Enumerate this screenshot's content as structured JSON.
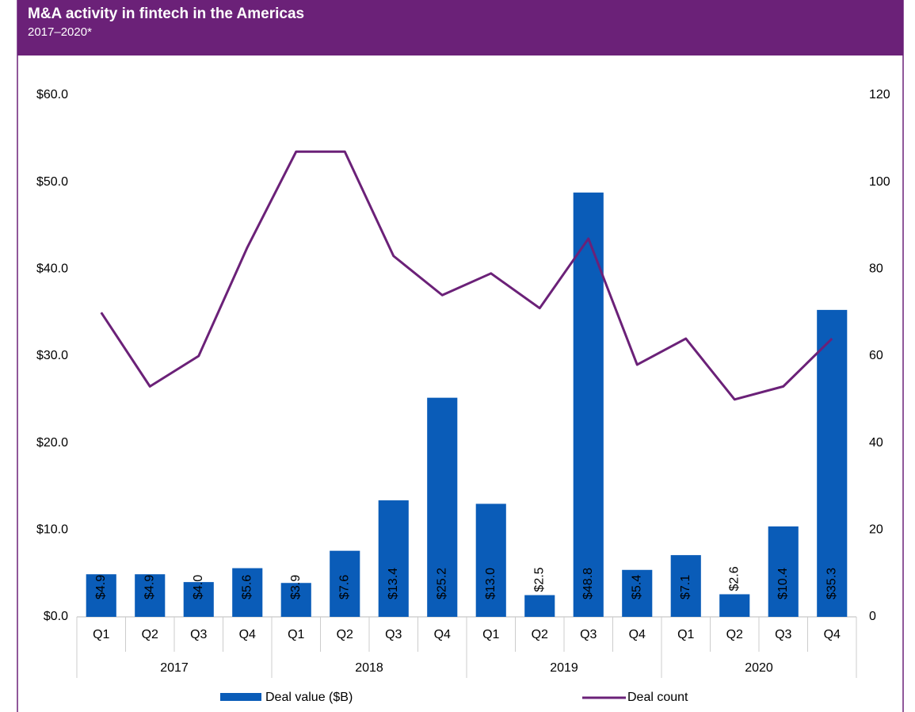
{
  "chart_data": {
    "type": "bar-line",
    "title": "M&A activity in fintech in the Americas",
    "subtitle": "2017–2020*",
    "categories": [
      "Q1",
      "Q2",
      "Q3",
      "Q4",
      "Q1",
      "Q2",
      "Q3",
      "Q4",
      "Q1",
      "Q2",
      "Q3",
      "Q4",
      "Q1",
      "Q2",
      "Q3",
      "Q4"
    ],
    "years": [
      "2017",
      "2018",
      "2019",
      "2020"
    ],
    "series": [
      {
        "name": "Deal value ($B)",
        "type": "bar",
        "color": "#0a5cb8",
        "axis": "y",
        "values": [
          4.9,
          4.9,
          4.0,
          5.6,
          3.9,
          7.6,
          13.4,
          25.2,
          13.0,
          2.5,
          48.8,
          5.4,
          7.1,
          2.6,
          10.4,
          35.3
        ],
        "value_labels": [
          "$4.9",
          "$4.9",
          "$4.0",
          "$5.6",
          "$3.9",
          "$7.6",
          "$13.4",
          "$25.2",
          "$13.0",
          "$2.5",
          "$48.8",
          "$5.4",
          "$7.1",
          "$2.6",
          "$10.4",
          "$35.3"
        ]
      },
      {
        "name": "Deal count",
        "type": "line",
        "color": "#6b2178",
        "axis": "y2",
        "values": [
          70,
          53,
          60,
          85,
          107,
          107,
          83,
          74,
          79,
          71,
          87,
          58,
          64,
          50,
          53,
          64
        ]
      }
    ],
    "ylim": [
      0,
      60
    ],
    "yticks": [
      {
        "value": 0,
        "label": "$0.0"
      },
      {
        "value": 10,
        "label": "$10.0"
      },
      {
        "value": 20,
        "label": "$20.0"
      },
      {
        "value": 30,
        "label": "$30.0"
      },
      {
        "value": 40,
        "label": "$40.0"
      },
      {
        "value": 50,
        "label": "$50.0"
      },
      {
        "value": 60,
        "label": "$60.0"
      }
    ],
    "y2lim": [
      0,
      120
    ],
    "y2ticks": [
      0,
      20,
      40,
      60,
      80,
      100,
      120
    ],
    "grid": false
  }
}
